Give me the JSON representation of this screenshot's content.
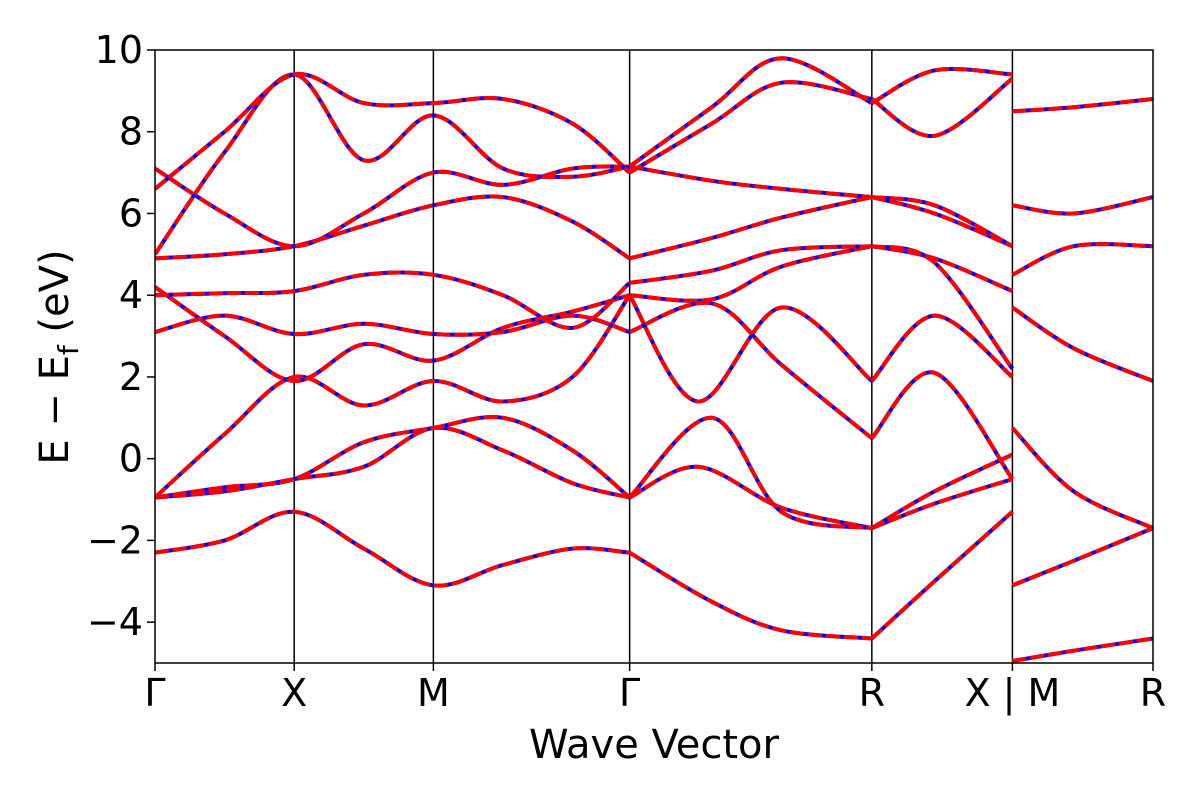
{
  "chart_data": {
    "type": "line",
    "xlabel": "Wave Vector",
    "ylabel_parts": {
      "main": "E − E",
      "sub": "f",
      "unit": " (eV)"
    },
    "ylim": [
      -5,
      10
    ],
    "yticks": [
      -4,
      -2,
      0,
      2,
      4,
      6,
      8,
      10
    ],
    "ytick_labels": [
      "−4",
      "−2",
      "0",
      "2",
      "4",
      "6",
      "8",
      "10"
    ],
    "kpath": [
      {
        "label": "Γ",
        "x": 0.0
      },
      {
        "label": "X",
        "x": 1.0
      },
      {
        "label": "M",
        "x": 2.0
      },
      {
        "label": "Γ",
        "x": 3.41
      },
      {
        "label": "R",
        "x": 5.15
      },
      {
        "label": "X | M",
        "x": 6.16
      },
      {
        "label": "R",
        "x": 7.17
      }
    ],
    "xlim": [
      0.0,
      7.17
    ],
    "line_style": {
      "solid_color": "#0000ff",
      "dashed_color": "#ff0000",
      "description": "two overlaid band structures: blue solid and red dashed"
    },
    "series": [
      {
        "x": [
          0,
          0.5,
          1,
          1.5,
          2,
          2.5,
          3,
          3.41
        ],
        "y": [
          -2.3,
          -2.0,
          -1.3,
          -2.2,
          -3.1,
          -2.6,
          -2.2,
          -2.3
        ]
      },
      {
        "x": [
          3.41,
          4.0,
          4.5,
          5.15
        ],
        "y": [
          -2.3,
          -3.5,
          -4.2,
          -4.4
        ]
      },
      {
        "x": [
          5.15,
          5.6,
          6.16
        ],
        "y": [
          -4.4,
          -3.0,
          -1.3
        ]
      },
      {
        "x": [
          0,
          0.5,
          1,
          1.5,
          2,
          2.5,
          3,
          3.41
        ],
        "y": [
          -0.95,
          -0.8,
          -0.5,
          -0.2,
          0.75,
          0.2,
          -0.6,
          -0.95
        ]
      },
      {
        "x": [
          3.41,
          3.9,
          4.5,
          5.15
        ],
        "y": [
          -0.95,
          -0.2,
          -1.2,
          -1.7
        ]
      },
      {
        "x": [
          5.15,
          5.6,
          6.16
        ],
        "y": [
          -1.7,
          -1.1,
          -0.5
        ]
      },
      {
        "x": [
          0,
          0.5,
          1,
          1.5,
          2,
          2.5,
          3,
          3.41
        ],
        "y": [
          -0.95,
          -0.7,
          -0.5,
          0.4,
          0.75,
          1.0,
          0.2,
          -0.95
        ]
      },
      {
        "x": [
          3.41,
          4.0,
          4.5,
          5.15
        ],
        "y": [
          -0.95,
          1.0,
          -1.3,
          -1.7
        ]
      },
      {
        "x": [
          5.15,
          5.6,
          6.16
        ],
        "y": [
          -1.7,
          -0.8,
          0.1
        ]
      },
      {
        "x": [
          0,
          0.5,
          1,
          1.5,
          2,
          2.5,
          3,
          3.41
        ],
        "y": [
          -0.95,
          0.6,
          2.0,
          1.3,
          1.9,
          1.4,
          2.0,
          4.0
        ]
      },
      {
        "x": [
          3.41,
          3.9,
          4.5,
          5.15
        ],
        "y": [
          4.0,
          1.4,
          3.7,
          1.9
        ]
      },
      {
        "x": [
          5.15,
          5.6,
          6.16
        ],
        "y": [
          1.9,
          3.5,
          2.0
        ]
      },
      {
        "x": [
          0,
          0.5,
          1,
          1.5,
          2,
          2.5,
          3,
          3.41
        ],
        "y": [
          4.2,
          3.0,
          1.9,
          2.8,
          2.4,
          3.2,
          3.6,
          4.0
        ]
      },
      {
        "x": [
          3.41,
          4.0,
          4.5,
          5.15
        ],
        "y": [
          4.0,
          3.9,
          4.7,
          5.2
        ]
      },
      {
        "x": [
          5.15,
          5.6,
          6.16
        ],
        "y": [
          5.2,
          4.8,
          2.2
        ]
      },
      {
        "x": [
          0,
          0.5,
          1,
          1.5,
          2,
          2.5,
          3,
          3.41
        ],
        "y": [
          3.1,
          3.5,
          3.05,
          3.3,
          3.05,
          3.1,
          3.5,
          3.1
        ]
      },
      {
        "x": [
          3.41,
          4.0,
          4.5,
          5.15
        ],
        "y": [
          3.1,
          3.8,
          2.3,
          0.5
        ]
      },
      {
        "x": [
          5.15,
          5.6,
          6.16
        ],
        "y": [
          0.5,
          2.1,
          -0.5
        ]
      },
      {
        "x": [
          0,
          0.5,
          1,
          1.5,
          2,
          2.5,
          3,
          3.41
        ],
        "y": [
          4.0,
          4.05,
          4.1,
          4.5,
          4.5,
          4.0,
          3.2,
          4.3
        ]
      },
      {
        "x": [
          3.41,
          4.0,
          4.5,
          5.15
        ],
        "y": [
          4.3,
          4.6,
          5.1,
          5.2
        ]
      },
      {
        "x": [
          5.15,
          5.6,
          6.16
        ],
        "y": [
          5.2,
          4.9,
          4.1
        ]
      },
      {
        "x": [
          0,
          0.5,
          1,
          1.5,
          2,
          2.5,
          3,
          3.41
        ],
        "y": [
          4.9,
          5.0,
          5.2,
          5.7,
          6.2,
          6.4,
          5.8,
          4.9
        ]
      },
      {
        "x": [
          3.41,
          4.0,
          4.5,
          5.15
        ],
        "y": [
          4.9,
          5.4,
          5.9,
          6.4
        ]
      },
      {
        "x": [
          5.15,
          5.6,
          6.16
        ],
        "y": [
          6.4,
          6.0,
          5.2
        ]
      },
      {
        "x": [
          0,
          0.5,
          1,
          1.5,
          2,
          2.5,
          3,
          3.41
        ],
        "y": [
          7.1,
          6.0,
          5.2,
          6.0,
          7.0,
          6.7,
          7.1,
          7.15
        ]
      },
      {
        "x": [
          3.41,
          4.0,
          4.5,
          5.15
        ],
        "y": [
          7.15,
          6.8,
          6.6,
          6.4
        ]
      },
      {
        "x": [
          5.15,
          5.6,
          6.16
        ],
        "y": [
          6.4,
          6.2,
          5.2
        ]
      },
      {
        "x": [
          0,
          0.5,
          1,
          1.5,
          2,
          2.5,
          3,
          3.41
        ],
        "y": [
          5.0,
          7.5,
          9.4,
          7.3,
          8.4,
          7.1,
          6.9,
          7.15
        ]
      },
      {
        "x": [
          3.41,
          4.0,
          4.5,
          5.15
        ],
        "y": [
          7.15,
          8.6,
          9.8,
          8.7
        ]
      },
      {
        "x": [
          5.15,
          5.6,
          6.16
        ],
        "y": [
          8.7,
          9.5,
          9.4
        ]
      },
      {
        "x": [
          0,
          0.5,
          1,
          1.5,
          2,
          2.5,
          3,
          3.41
        ],
        "y": [
          6.6,
          8.0,
          9.4,
          8.7,
          8.7,
          8.8,
          8.2,
          7.0
        ]
      },
      {
        "x": [
          3.41,
          4.0,
          4.5,
          5.15
        ],
        "y": [
          7.0,
          8.2,
          9.2,
          8.8
        ]
      },
      {
        "x": [
          5.15,
          5.6,
          6.16
        ],
        "y": [
          8.8,
          7.9,
          9.3
        ]
      },
      {
        "x": [
          6.16,
          6.6,
          7.17
        ],
        "y": [
          0.75,
          -0.8,
          -1.7
        ]
      },
      {
        "x": [
          6.16,
          6.6,
          7.17
        ],
        "y": [
          -3.1,
          -2.5,
          -1.7
        ]
      },
      {
        "x": [
          6.16,
          6.6,
          7.17
        ],
        "y": [
          3.7,
          2.7,
          1.9
        ]
      },
      {
        "x": [
          6.16,
          6.6,
          7.17
        ],
        "y": [
          4.5,
          5.2,
          5.2
        ]
      },
      {
        "x": [
          6.16,
          6.6,
          7.17
        ],
        "y": [
          6.2,
          6.0,
          6.4
        ]
      },
      {
        "x": [
          6.16,
          6.6,
          7.17
        ],
        "y": [
          8.5,
          8.6,
          8.8
        ]
      },
      {
        "x": [
          6.16,
          6.6,
          7.17
        ],
        "y": [
          -4.95,
          -4.7,
          -4.4
        ]
      }
    ]
  }
}
